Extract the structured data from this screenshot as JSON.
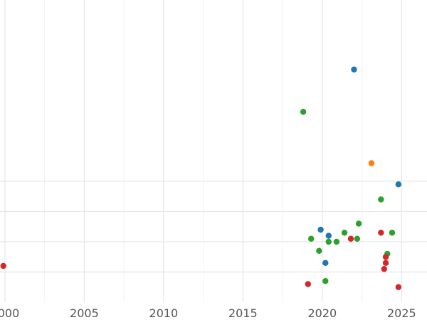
{
  "chart_data": {
    "type": "scatter",
    "title": "",
    "xlabel": "",
    "ylabel": "",
    "xlim": [
      1999.6,
      2026.6
    ],
    "ylim": [
      0,
      10
    ],
    "x_ticks": [
      2000,
      2005,
      2010,
      2015,
      2020,
      2025
    ],
    "x_tick_labels": [
      "2000",
      "2005",
      "2010",
      "2015",
      "2020",
      "2025"
    ],
    "y_gridlines": [
      1,
      2,
      3,
      4
    ],
    "grid": true,
    "legend": "none",
    "series": [
      {
        "color": "#1f77b4",
        "points": [
          {
            "x": 2022.0,
            "y": 7.7
          },
          {
            "x": 2024.8,
            "y": 3.9
          },
          {
            "x": 2019.9,
            "y": 2.4
          },
          {
            "x": 2020.4,
            "y": 2.2
          },
          {
            "x": 2020.2,
            "y": 1.3
          }
        ]
      },
      {
        "color": "#2ca02c",
        "points": [
          {
            "x": 2018.8,
            "y": 6.3
          },
          {
            "x": 2023.7,
            "y": 3.4
          },
          {
            "x": 2022.3,
            "y": 2.6
          },
          {
            "x": 2021.4,
            "y": 2.3
          },
          {
            "x": 2024.4,
            "y": 2.3
          },
          {
            "x": 2019.3,
            "y": 2.1
          },
          {
            "x": 2020.4,
            "y": 2.0
          },
          {
            "x": 2020.9,
            "y": 2.0
          },
          {
            "x": 2022.2,
            "y": 2.1
          },
          {
            "x": 2019.8,
            "y": 1.7
          },
          {
            "x": 2024.1,
            "y": 1.6
          },
          {
            "x": 2020.2,
            "y": 0.7
          }
        ]
      },
      {
        "color": "#ff7f0e",
        "points": [
          {
            "x": 2023.1,
            "y": 4.6
          }
        ]
      },
      {
        "color": "#d62728",
        "points": [
          {
            "x": 1999.9,
            "y": 1.2
          },
          {
            "x": 2019.1,
            "y": 0.6
          },
          {
            "x": 2021.8,
            "y": 2.1
          },
          {
            "x": 2023.7,
            "y": 2.3
          },
          {
            "x": 2024.0,
            "y": 1.5
          },
          {
            "x": 2024.0,
            "y": 1.3
          },
          {
            "x": 2023.9,
            "y": 1.1
          },
          {
            "x": 2024.8,
            "y": 0.5
          }
        ]
      }
    ]
  }
}
